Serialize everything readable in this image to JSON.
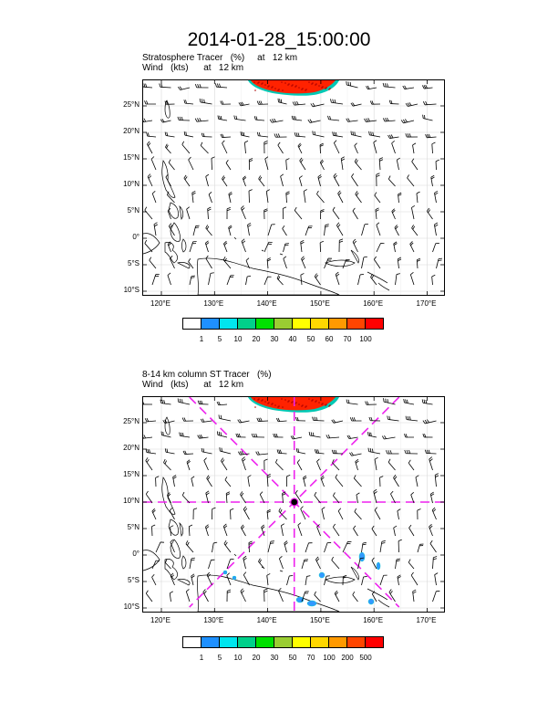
{
  "title": "2014-01-28_15:00:00",
  "panel1": {
    "subtitle_line1": "Stratosphere Tracer   (%)     at   12 km",
    "subtitle_line2": "Wind   (kts)      at   12 km",
    "colorbar_labels": [
      "1",
      "5",
      "10",
      "20",
      "30",
      "40",
      "50",
      "60",
      "70",
      "100"
    ],
    "colorbar_colors": [
      "#ffffff",
      "#1e90ff",
      "#00e5ee",
      "#00d08a",
      "#00e000",
      "#9acd32",
      "#ffff00",
      "#ffd700",
      "#ff9900",
      "#ff4500",
      "#ff0000"
    ]
  },
  "panel2": {
    "subtitle_line1": "8-14 km column ST Tracer   (%)",
    "subtitle_line2": "Wind   (kts)      at   12 km",
    "colorbar_labels": [
      "1",
      "5",
      "10",
      "20",
      "30",
      "50",
      "70",
      "100",
      "200",
      "500"
    ],
    "colorbar_colors": [
      "#ffffff",
      "#1e90ff",
      "#00e5ee",
      "#00d08a",
      "#00e000",
      "#9acd32",
      "#ffff00",
      "#ffd700",
      "#ff9900",
      "#ff4500",
      "#ff0000"
    ]
  },
  "lat_labels": [
    "25°N",
    "20°N",
    "15°N",
    "10°N",
    "5°N",
    "0°",
    "5°S",
    "10°S"
  ],
  "lon_labels": [
    "120°E",
    "130°E",
    "140°E",
    "150°E",
    "160°E",
    "170°E"
  ],
  "colors": {
    "tracer_red": "#ff2200",
    "cross_magenta": "#ee22ee",
    "coast": "#000000"
  }
}
